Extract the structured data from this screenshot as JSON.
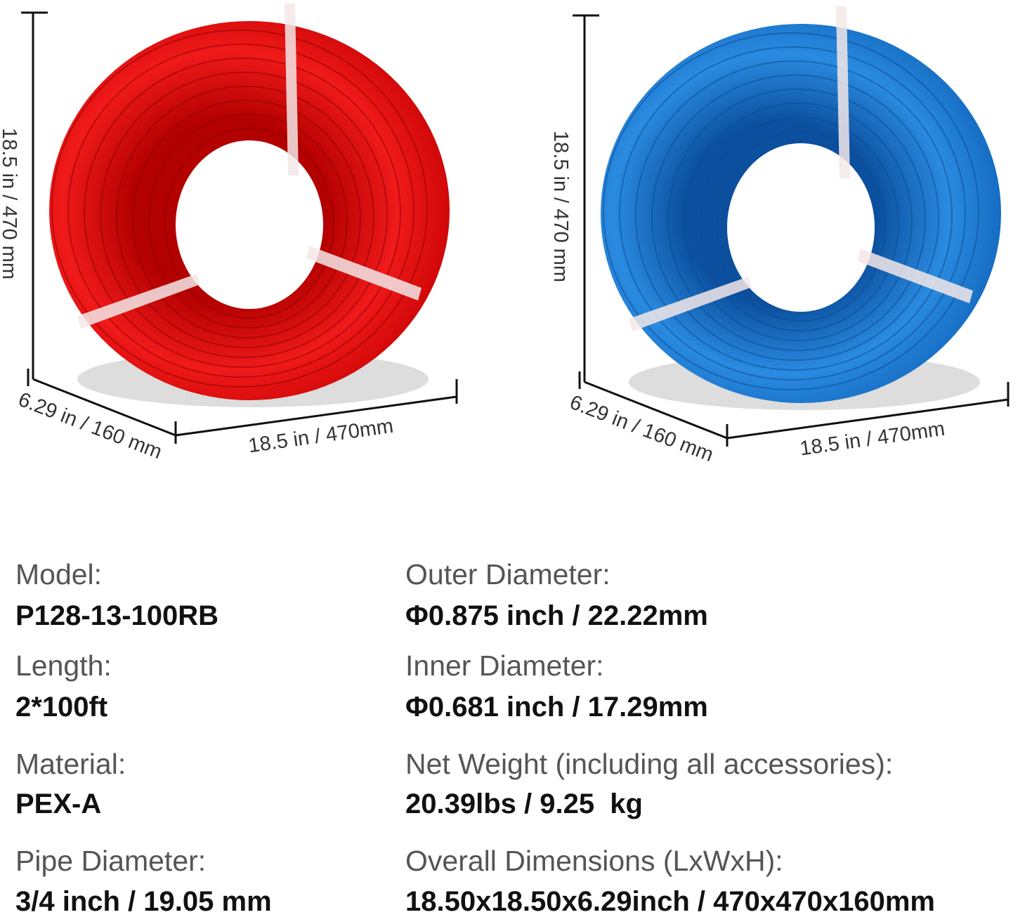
{
  "coils": [
    {
      "height": "18.5 in / 470 mm",
      "depth": "6.29 in / 160 mm",
      "width": "18.5 in / 470mm"
    },
    {
      "height": "18.5 in / 470 mm",
      "depth": "6.29 in / 160 mm",
      "width": "18.5 in / 470mm"
    }
  ],
  "specs": {
    "left": [
      {
        "label": "Model:",
        "value": "P128-13-100RB"
      },
      {
        "label": "Length:",
        "value": "2*100ft"
      },
      {
        "label": "Material:",
        "value": "PEX-A"
      },
      {
        "label": "Pipe Diameter:",
        "value": "3/4 inch / 19.05 mm"
      }
    ],
    "right": [
      {
        "label": "Outer Diameter:",
        "value": "Φ0.875 inch / 22.22mm"
      },
      {
        "label": "Inner Diameter:",
        "value": "Φ0.681 inch / 17.29mm"
      },
      {
        "label": "Net Weight (including all accessories):",
        "value": "20.39lbs / 9.25  kg"
      },
      {
        "label": "Overall Dimensions (LxWxH):",
        "value": "18.50x18.50x6.29inch / 470x470x160mm"
      }
    ]
  }
}
